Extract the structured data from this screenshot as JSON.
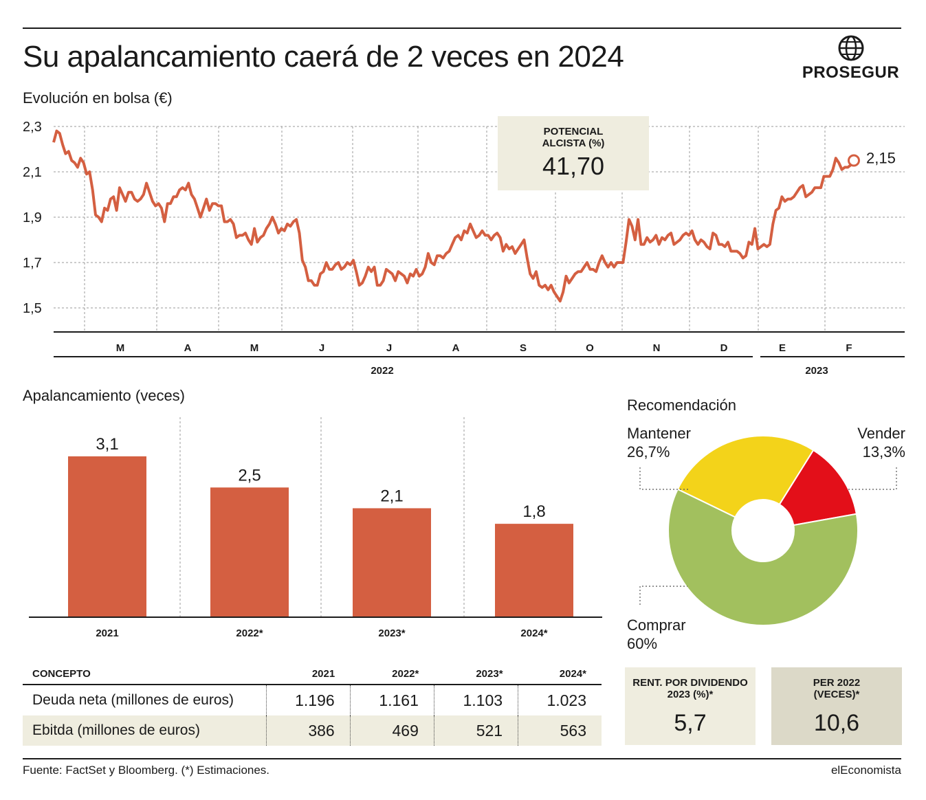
{
  "header": {
    "title": "Su apalancamiento caerá de 2 veces en 2024",
    "logo_text": "PROSEGUR"
  },
  "colors": {
    "line": "#d45f41",
    "bar": "#d45f41",
    "comprar": "#a2c05e",
    "mantener": "#f3d31a",
    "vender": "#e30f19",
    "box_light": "#efeddf",
    "box_dark": "#dcd9c8"
  },
  "line_section": {
    "subtitle": "Evolución en bolsa (€)",
    "last_value_label": "2,15",
    "callout": {
      "label": "POTENCIAL ALCISTA (%)",
      "value": "41,70"
    }
  },
  "bar_section": {
    "subtitle": "Apalancamiento (veces)"
  },
  "pie_section": {
    "subtitle": "Recomendación",
    "labels": [
      {
        "name": "Mantener",
        "pct": "26,7%"
      },
      {
        "name": "Vender",
        "pct": "13,3%"
      },
      {
        "name": "Comprar",
        "pct": "60%"
      }
    ]
  },
  "table": {
    "headers": [
      "CONCEPTO",
      "2021",
      "2022*",
      "2023*",
      "2024*"
    ],
    "rows": [
      [
        "Deuda neta (millones de euros)",
        "1.196",
        "1.161",
        "1.103",
        "1.023"
      ],
      [
        "Ebitda (millones de euros)",
        "386",
        "469",
        "521",
        "563"
      ]
    ]
  },
  "boxes": {
    "rent": {
      "label": "RENT. POR DIVIDENDO 2023 (%)*",
      "value": "5,7"
    },
    "per": {
      "label": "PER 2022 (VECES)*",
      "value": "10,6"
    }
  },
  "footer": {
    "source": "Fuente: FactSet y Bloomberg. (*) Estimaciones.",
    "credit": "elEconomista"
  },
  "chart_data": [
    {
      "type": "line",
      "title": "Evolución en bolsa (€)",
      "ylabel": "€",
      "ylim": [
        1.4,
        2.3
      ],
      "yticks": [
        "2,3",
        "2,1",
        "1,9",
        "1,7",
        "1,5"
      ],
      "ytick_values": [
        2.3,
        2.1,
        1.9,
        1.7,
        1.5
      ],
      "grid": true,
      "month_labels": [
        "M",
        "A",
        "M",
        "J",
        "J",
        "A",
        "S",
        "O",
        "N",
        "D",
        "E",
        "F"
      ],
      "year_labels": [
        "2022",
        "2023"
      ],
      "series": [
        {
          "values": [
            2.23,
            2.28,
            2.27,
            2.22,
            2.18,
            2.19,
            2.15,
            2.14,
            2.12,
            2.16,
            2.14,
            2.09,
            2.1,
            2.02,
            1.91,
            1.9,
            1.88,
            1.94,
            1.93,
            1.98,
            1.99,
            1.93,
            2.03,
            2.0,
            1.97,
            2.01,
            2.01,
            1.98,
            1.97,
            1.98,
            2.0,
            2.05,
            2.01,
            1.97,
            1.95,
            1.96,
            1.94,
            1.88,
            1.96,
            1.96,
            1.99,
            1.99,
            2.02,
            2.03,
            2.02,
            2.05,
            2.0,
            1.98,
            1.94,
            1.9,
            1.94,
            1.98,
            1.93,
            1.96,
            1.96,
            1.95,
            1.95,
            1.88,
            1.88,
            1.89,
            1.87,
            1.81,
            1.82,
            1.82,
            1.83,
            1.8,
            1.78,
            1.85,
            1.79,
            1.81,
            1.82,
            1.85,
            1.87,
            1.9,
            1.87,
            1.83,
            1.85,
            1.84,
            1.87,
            1.86,
            1.88,
            1.89,
            1.83,
            1.71,
            1.68,
            1.62,
            1.62,
            1.6,
            1.6,
            1.65,
            1.66,
            1.7,
            1.67,
            1.67,
            1.69,
            1.7,
            1.67,
            1.68,
            1.7,
            1.69,
            1.71,
            1.66,
            1.6,
            1.61,
            1.64,
            1.68,
            1.66,
            1.68,
            1.6,
            1.6,
            1.62,
            1.67,
            1.66,
            1.65,
            1.62,
            1.66,
            1.65,
            1.64,
            1.61,
            1.65,
            1.64,
            1.67,
            1.64,
            1.65,
            1.68,
            1.74,
            1.7,
            1.69,
            1.73,
            1.73,
            1.72,
            1.74,
            1.75,
            1.78,
            1.81,
            1.82,
            1.8,
            1.84,
            1.83,
            1.87,
            1.84,
            1.81,
            1.82,
            1.84,
            1.82,
            1.82,
            1.8,
            1.82,
            1.83,
            1.81,
            1.75,
            1.78,
            1.76,
            1.77,
            1.74,
            1.76,
            1.78,
            1.8,
            1.72,
            1.65,
            1.63,
            1.66,
            1.6,
            1.59,
            1.6,
            1.58,
            1.6,
            1.57,
            1.55,
            1.53,
            1.57,
            1.64,
            1.61,
            1.63,
            1.65,
            1.66,
            1.66,
            1.68,
            1.7,
            1.67,
            1.67,
            1.66,
            1.7,
            1.73,
            1.7,
            1.68,
            1.7,
            1.68,
            1.7,
            1.7,
            1.7,
            1.79,
            1.89,
            1.86,
            1.8,
            1.89,
            1.78,
            1.78,
            1.81,
            1.79,
            1.8,
            1.82,
            1.78,
            1.81,
            1.8,
            1.82,
            1.83,
            1.78,
            1.79,
            1.8,
            1.82,
            1.83,
            1.82,
            1.84,
            1.8,
            1.78,
            1.8,
            1.79,
            1.77,
            1.76,
            1.83,
            1.82,
            1.78,
            1.78,
            1.77,
            1.79,
            1.75,
            1.75,
            1.75,
            1.74,
            1.72,
            1.73,
            1.79,
            1.78,
            1.85,
            1.76,
            1.77,
            1.78,
            1.77,
            1.78,
            1.87,
            1.93,
            1.94,
            1.99,
            1.97,
            1.98,
            1.98,
            1.99,
            2.01,
            2.03,
            2.04,
            1.99,
            2.0,
            2.01,
            2.03,
            2.03,
            2.03,
            2.08,
            2.08,
            2.08,
            2.11,
            2.16,
            2.14,
            2.11,
            2.12,
            2.12,
            2.13,
            2.15
          ]
        }
      ],
      "last_value": 2.15
    },
    {
      "type": "bar",
      "title": "Apalancamiento (veces)",
      "categories": [
        "2021",
        "2022*",
        "2023*",
        "2024*"
      ],
      "values": [
        3.1,
        2.5,
        2.1,
        1.8
      ],
      "value_labels": [
        "3,1",
        "2,5",
        "2,1",
        "1,8"
      ],
      "ylim": [
        0,
        3.1
      ]
    },
    {
      "type": "pie",
      "title": "Recomendación",
      "slices": [
        {
          "label": "Vender",
          "value": 13.3
        },
        {
          "label": "Comprar",
          "value": 60
        },
        {
          "label": "Mantener",
          "value": 26.7
        }
      ]
    }
  ]
}
